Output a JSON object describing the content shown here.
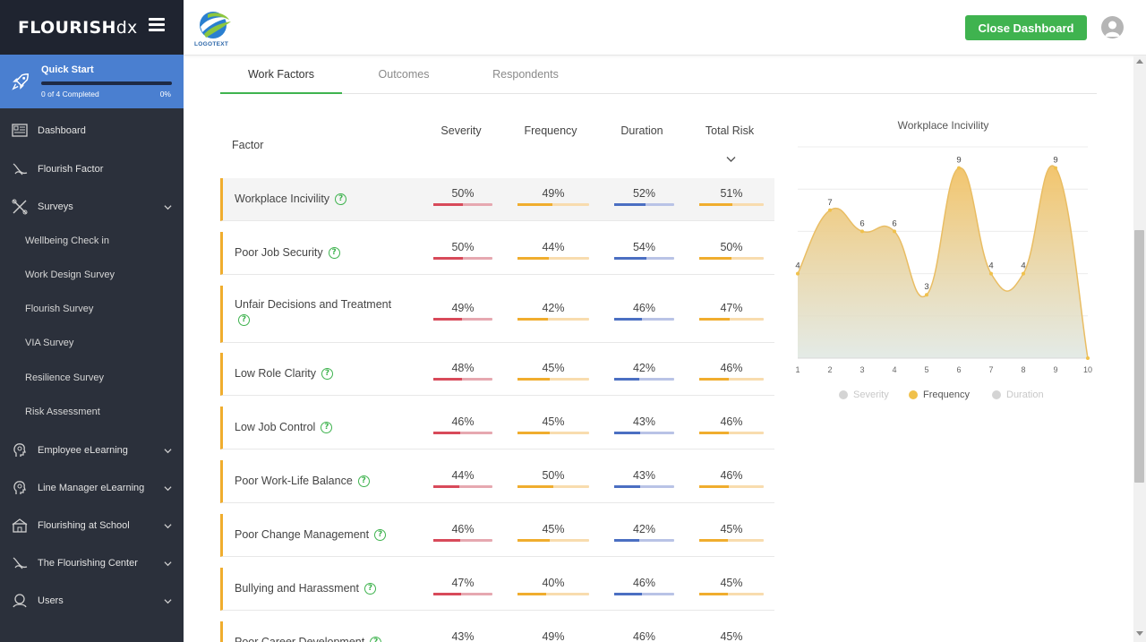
{
  "app": {
    "brand_main": "FLOURISH",
    "brand_suffix": "dx",
    "logo_text": "LOGOTEXT",
    "close_label": "Close Dashboard"
  },
  "quick_start": {
    "title": "Quick Start",
    "status": "0 of 4 Completed",
    "percent": "0%",
    "progress": 0
  },
  "nav": {
    "dashboard": "Dashboard",
    "flourish_factor": "Flourish Factor",
    "surveys": "Surveys",
    "survey_items": [
      "Wellbeing Check in",
      "Work Design Survey",
      "Flourish Survey",
      "VIA Survey",
      "Resilience Survey",
      "Risk Assessment"
    ],
    "employee_elearning": "Employee eLearning",
    "line_manager_elearning": "Line Manager eLearning",
    "flourishing_school": "Flourishing at School",
    "flourishing_center": "The Flourishing Center",
    "users": "Users"
  },
  "tabs": [
    "Work Factors",
    "Outcomes",
    "Respondents"
  ],
  "table": {
    "headers": {
      "factor": "Factor",
      "severity": "Severity",
      "frequency": "Frequency",
      "duration": "Duration",
      "total": "Total Risk"
    },
    "rows": [
      {
        "factor": "Workplace Incivility",
        "severity": "50%",
        "frequency": "49%",
        "duration": "52%",
        "total": "51%",
        "sev": 50,
        "freq": 49,
        "dur": 52,
        "tot": 51
      },
      {
        "factor": "Poor Job Security",
        "severity": "50%",
        "frequency": "44%",
        "duration": "54%",
        "total": "50%",
        "sev": 50,
        "freq": 44,
        "dur": 54,
        "tot": 50
      },
      {
        "factor": "Unfair Decisions and Treatment",
        "severity": "49%",
        "frequency": "42%",
        "duration": "46%",
        "total": "47%",
        "sev": 49,
        "freq": 42,
        "dur": 46,
        "tot": 47
      },
      {
        "factor": "Low Role Clarity",
        "severity": "48%",
        "frequency": "45%",
        "duration": "42%",
        "total": "46%",
        "sev": 48,
        "freq": 45,
        "dur": 42,
        "tot": 46
      },
      {
        "factor": "Low Job Control",
        "severity": "46%",
        "frequency": "45%",
        "duration": "43%",
        "total": "46%",
        "sev": 46,
        "freq": 45,
        "dur": 43,
        "tot": 46
      },
      {
        "factor": "Poor Work-Life Balance",
        "severity": "44%",
        "frequency": "50%",
        "duration": "43%",
        "total": "46%",
        "sev": 44,
        "freq": 50,
        "dur": 43,
        "tot": 46
      },
      {
        "factor": "Poor Change Management",
        "severity": "46%",
        "frequency": "45%",
        "duration": "42%",
        "total": "45%",
        "sev": 46,
        "freq": 45,
        "dur": 42,
        "tot": 45
      },
      {
        "factor": "Bullying and Harassment",
        "severity": "47%",
        "frequency": "40%",
        "duration": "46%",
        "total": "45%",
        "sev": 47,
        "freq": 40,
        "dur": 46,
        "tot": 45
      },
      {
        "factor": "Poor Career Development",
        "severity": "43%",
        "frequency": "49%",
        "duration": "46%",
        "total": "45%",
        "sev": 43,
        "freq": 49,
        "dur": 46,
        "tot": 45
      }
    ]
  },
  "colors": {
    "severity": "#d84a5a",
    "severity_track": "#e6a8b0",
    "frequency": "#f0ad2e",
    "frequency_track": "#f8dcae",
    "duration": "#4b6fc2",
    "duration_track": "#b9c3e6",
    "total": "#f0ad2e",
    "total_track": "#f8dcae",
    "accent_green": "#3fb34f",
    "sidebar_bg": "#2b303b",
    "quick_start_bg": "#4a7fd0"
  },
  "chart_data": {
    "type": "area",
    "title": "Workplace Incivility",
    "x": [
      1,
      2,
      3,
      4,
      5,
      6,
      7,
      8,
      9,
      10
    ],
    "series": [
      {
        "name": "Frequency",
        "values": [
          4,
          7,
          6,
          6,
          3,
          9,
          4,
          4,
          9,
          0
        ],
        "color": "#f0ad2e",
        "visible": true
      },
      {
        "name": "Severity",
        "color": "#d0d0d0",
        "visible": false
      },
      {
        "name": "Duration",
        "color": "#d0d0d0",
        "visible": false
      }
    ],
    "data_labels": [
      "4",
      "7",
      "6",
      "6",
      "3",
      "9",
      "4",
      "4",
      "9",
      ""
    ],
    "ylim": [
      0,
      10
    ],
    "legend_position": "bottom",
    "grid": true
  }
}
